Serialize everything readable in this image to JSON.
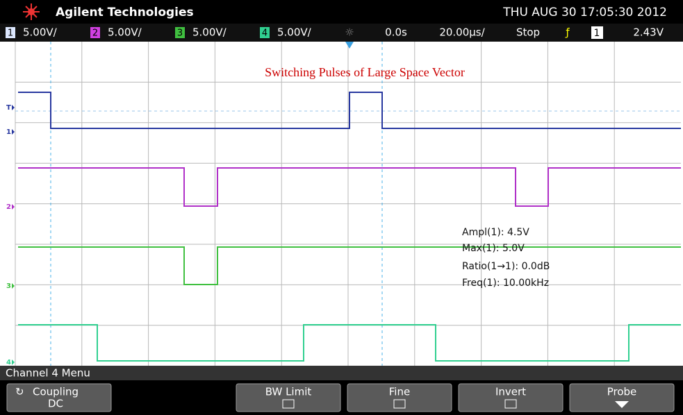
{
  "header": {
    "brand": "Agilent Technologies",
    "datetime": "THU AUG 30 17:05:30 2012"
  },
  "status": {
    "channels": [
      {
        "num": "1",
        "scale": "5.00V/"
      },
      {
        "num": "2",
        "scale": "5.00V/"
      },
      {
        "num": "3",
        "scale": "5.00V/"
      },
      {
        "num": "4",
        "scale": "5.00V/"
      }
    ],
    "time_offset": "0.0s",
    "timebase": "20.00µs/",
    "run_state": "Stop",
    "trigger_channel": "1",
    "trigger_level": "2.43V"
  },
  "screen": {
    "annotation": "Switching Pulses of  Large   Space Vector",
    "markers": [
      "T",
      "1",
      "2",
      "3",
      "4"
    ],
    "measurements": [
      "Ampl(1): 4.5V",
      "Max(1): 5.0V",
      "Ratio(1→1): 0.0dB",
      "Freq(1): 10.00kHz"
    ]
  },
  "menu": {
    "title": "Channel 4  Menu",
    "buttons": [
      {
        "label": "Coupling",
        "value": "DC"
      },
      {
        "label": "BW Limit"
      },
      {
        "label": "Fine"
      },
      {
        "label": "Invert"
      },
      {
        "label": "Probe"
      }
    ]
  }
}
